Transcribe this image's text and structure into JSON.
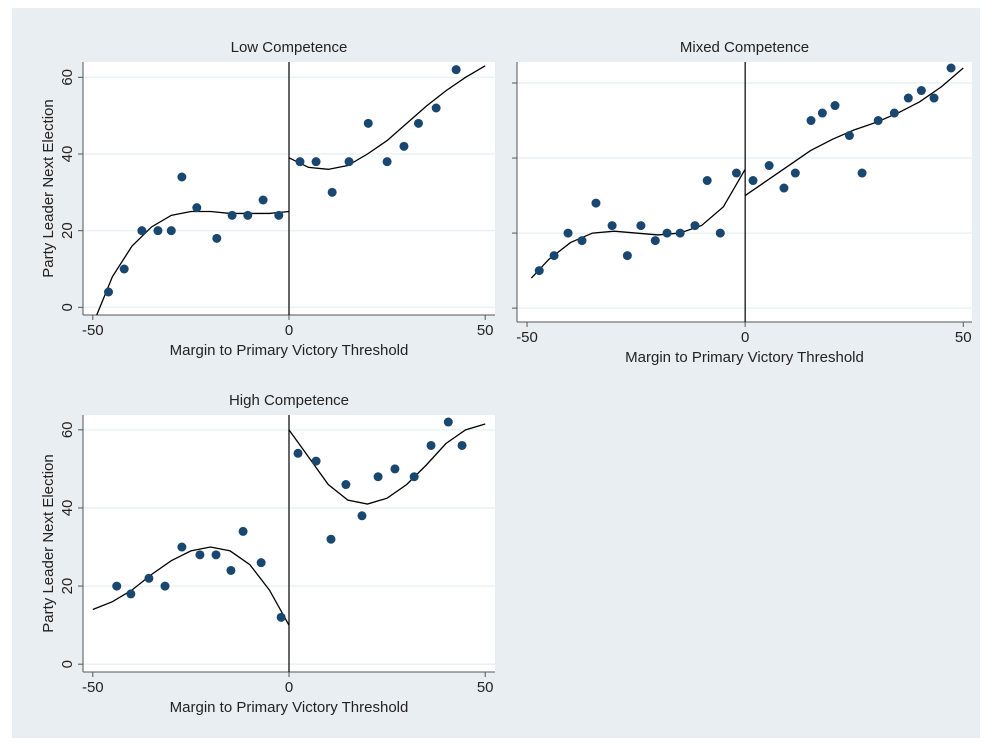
{
  "chart_data": [
    {
      "type": "scatter",
      "title": "Low Competence",
      "xlabel": "Margin to Primary Victory Threshold",
      "ylabel": "Party Leader Next Election",
      "xlim": [
        -52.5,
        52.5
      ],
      "ylim": [
        -2,
        64
      ],
      "xticks": [
        -50,
        0,
        50
      ],
      "yticks": [
        0,
        20,
        40,
        60
      ],
      "ytick_labels": true,
      "grid": true,
      "vline": 0,
      "color": "#1a476f",
      "line_color": "#000000",
      "x": [
        -46,
        -42,
        -37.5,
        -33.4,
        -30,
        -27.3,
        -23.5,
        -18.4,
        -14.5,
        -10.5,
        -6.6,
        -2.6,
        2.8,
        6.9,
        11,
        15.3,
        20.2,
        25,
        29.3,
        33,
        37.5,
        42.6
      ],
      "y": [
        4,
        10,
        20,
        20,
        20,
        34,
        26,
        18,
        24,
        24,
        28,
        24,
        38,
        38,
        30,
        38,
        48,
        38,
        42,
        48,
        52,
        62
      ],
      "fit": [
        {
          "x": [
            -49,
            -45,
            -40,
            -35,
            -30,
            -25,
            -20,
            -15,
            -10,
            -5,
            0
          ],
          "y": [
            -2,
            8,
            16,
            21,
            24,
            25,
            25,
            24.5,
            24.5,
            24.5,
            25
          ]
        },
        {
          "x": [
            0,
            5,
            10,
            15,
            20,
            25,
            30,
            35,
            40,
            45,
            50
          ],
          "y": [
            39,
            36.5,
            36,
            37,
            40,
            43.5,
            48,
            52.5,
            56.5,
            60,
            63
          ]
        }
      ]
    },
    {
      "type": "scatter",
      "title": "Mixed Competence",
      "xlabel": "Margin to Primary Victory Threshold",
      "xlim": [
        -52.3,
        52
      ],
      "ylim": [
        -3.7,
        65.6
      ],
      "xticks": [
        -50,
        0,
        50
      ],
      "yticks": [
        0,
        20,
        40,
        60
      ],
      "ytick_labels": false,
      "grid": true,
      "vline": 0,
      "color": "#1a476f",
      "line_color": "#000000",
      "x": [
        -47.2,
        -43.8,
        -40.6,
        -37.4,
        -34.2,
        -30.5,
        -27,
        -23.9,
        -20.6,
        -17.9,
        -14.9,
        -11.5,
        -8.7,
        -5.7,
        -2,
        1.8,
        5.5,
        8.9,
        11.5,
        15.1,
        17.7,
        20.6,
        23.9,
        26.8,
        30.5,
        34.2,
        37.4,
        40.4,
        43.3,
        47.2
      ],
      "y": [
        10,
        14,
        20,
        18,
        28,
        22,
        14,
        22,
        18,
        20,
        20,
        22,
        34,
        20,
        36,
        34,
        38,
        32,
        36,
        50,
        52,
        54,
        46,
        36,
        50,
        52,
        56,
        58,
        56,
        64
      ],
      "fit": [
        {
          "x": [
            -49,
            -45,
            -40,
            -35,
            -30,
            -25,
            -20,
            -15,
            -10,
            -5,
            0
          ],
          "y": [
            8,
            13,
            17.5,
            20,
            20.5,
            20,
            19.5,
            20,
            22,
            27,
            37
          ]
        },
        {
          "x": [
            0,
            5,
            10,
            15,
            20,
            25,
            30,
            35,
            40,
            45,
            50
          ],
          "y": [
            30,
            34,
            38,
            42,
            45,
            47.5,
            49.5,
            52,
            55,
            59,
            64
          ]
        }
      ]
    },
    {
      "type": "scatter",
      "title": "High Competence",
      "xlabel": "Margin to Primary Victory Threshold",
      "ylabel": "Party Leader Next Election",
      "xlim": [
        -52.5,
        52.5
      ],
      "ylim": [
        -2,
        63.8
      ],
      "xticks": [
        -50,
        0,
        50
      ],
      "yticks": [
        0,
        20,
        40,
        60
      ],
      "ytick_labels": true,
      "grid": true,
      "vline": 0,
      "color": "#1a476f",
      "line_color": "#000000",
      "x": [
        -43.9,
        -40.3,
        -35.7,
        -31.6,
        -27.3,
        -22.7,
        -18.6,
        -14.8,
        -11.7,
        -7.1,
        -2,
        2.3,
        6.9,
        10.7,
        14.5,
        18.6,
        22.7,
        27,
        31.9,
        36.2,
        40.6,
        44.1
      ],
      "y": [
        20,
        18,
        22,
        20,
        30,
        28,
        28,
        24,
        34,
        26,
        12,
        54,
        52,
        32,
        46,
        38,
        48,
        50,
        48,
        56,
        62,
        56
      ],
      "fit": [
        {
          "x": [
            -50,
            -45,
            -40,
            -35,
            -30,
            -25,
            -20,
            -15,
            -10,
            -5,
            0
          ],
          "y": [
            14,
            16,
            19,
            23,
            26.5,
            29,
            30,
            29,
            25.5,
            19,
            10
          ]
        },
        {
          "x": [
            0,
            5,
            10,
            15,
            20,
            25,
            30,
            35,
            40,
            45,
            50
          ],
          "y": [
            60,
            53,
            46,
            42,
            41,
            42.5,
            46,
            51,
            56.5,
            60,
            61.5
          ]
        }
      ]
    }
  ]
}
